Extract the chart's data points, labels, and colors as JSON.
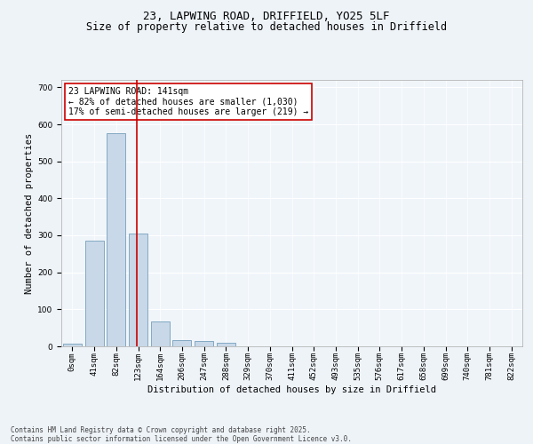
{
  "title_line1": "23, LAPWING ROAD, DRIFFIELD, YO25 5LF",
  "title_line2": "Size of property relative to detached houses in Driffield",
  "xlabel": "Distribution of detached houses by size in Driffield",
  "ylabel": "Number of detached properties",
  "bin_labels": [
    "0sqm",
    "41sqm",
    "82sqm",
    "123sqm",
    "164sqm",
    "206sqm",
    "247sqm",
    "288sqm",
    "329sqm",
    "370sqm",
    "411sqm",
    "452sqm",
    "493sqm",
    "535sqm",
    "576sqm",
    "617sqm",
    "658sqm",
    "699sqm",
    "740sqm",
    "781sqm",
    "822sqm"
  ],
  "bar_values": [
    8,
    285,
    575,
    305,
    67,
    18,
    14,
    10,
    0,
    0,
    0,
    0,
    0,
    0,
    0,
    0,
    0,
    0,
    0,
    0,
    0
  ],
  "bar_color": "#c8d8e8",
  "bar_edgecolor": "#6090b0",
  "ylim": [
    0,
    720
  ],
  "yticks": [
    0,
    100,
    200,
    300,
    400,
    500,
    600,
    700
  ],
  "property_size": 141,
  "vline_color": "#cc0000",
  "annotation_text": "23 LAPWING ROAD: 141sqm\n← 82% of detached houses are smaller (1,030)\n17% of semi-detached houses are larger (219) →",
  "annotation_box_color": "#ffffff",
  "annotation_box_edgecolor": "#cc0000",
  "footer_text": "Contains HM Land Registry data © Crown copyright and database right 2025.\nContains public sector information licensed under the Open Government Licence v3.0.",
  "bg_color": "#eef3f8",
  "plot_bg_color": "#f0f5fa",
  "grid_color": "#ffffff",
  "title_fontsize": 9,
  "subtitle_fontsize": 8.5,
  "label_fontsize": 7.5,
  "tick_fontsize": 6.5,
  "annotation_fontsize": 7,
  "footer_fontsize": 5.5
}
